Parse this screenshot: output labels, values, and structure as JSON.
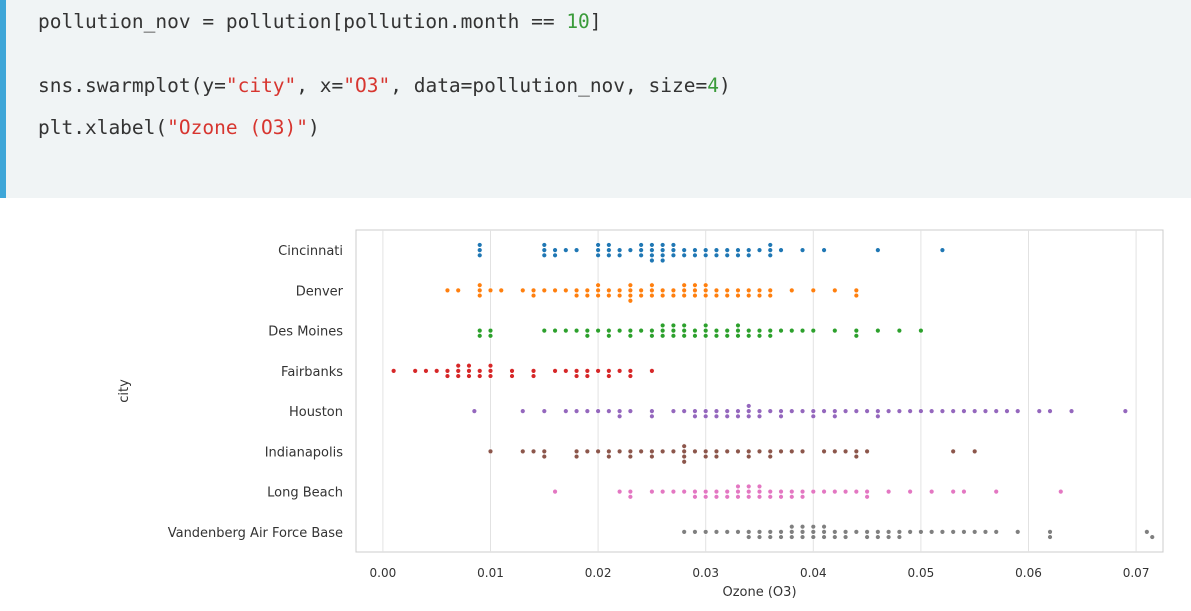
{
  "code": {
    "line1": {
      "pre": "pollution_nov = pollution[pollution.month == ",
      "n": "10",
      "post": "]"
    },
    "line2": {
      "a": "sns.swarmplot(y=",
      "s1": "\"city\"",
      "b": ", x=",
      "s2": "\"O3\"",
      "c": ", data=pollution_nov, size=",
      "n": "4",
      "d": ")"
    },
    "line3": {
      "a": "plt.xlabel(",
      "s": "\"Ozone (O3)\"",
      "b": ")"
    }
  },
  "chart_data": {
    "type": "scatter",
    "subtype": "swarm",
    "xlabel": "Ozone (O3)",
    "ylabel": "city",
    "xlim": [
      -0.0025,
      0.0725
    ],
    "xticks": [
      "0.00",
      "0.01",
      "0.02",
      "0.03",
      "0.04",
      "0.05",
      "0.06",
      "0.07"
    ],
    "grid": "vertical",
    "categories": [
      "Cincinnati",
      "Denver",
      "Des Moines",
      "Fairbanks",
      "Houston",
      "Indianapolis",
      "Long Beach",
      "Vandenberg Air Force Base"
    ],
    "colors": [
      "#1f77b4",
      "#ff7f0e",
      "#2ca02c",
      "#d62728",
      "#9467bd",
      "#8c564b",
      "#e377c2",
      "#7f7f7f"
    ],
    "series": [
      {
        "values": [
          0.009,
          0.009,
          0.009,
          0.015,
          0.015,
          0.015,
          0.016,
          0.016,
          0.017,
          0.018,
          0.02,
          0.02,
          0.02,
          0.021,
          0.021,
          0.021,
          0.022,
          0.022,
          0.023,
          0.024,
          0.024,
          0.024,
          0.025,
          0.025,
          0.025,
          0.025,
          0.026,
          0.026,
          0.026,
          0.026,
          0.027,
          0.027,
          0.027,
          0.028,
          0.028,
          0.029,
          0.029,
          0.03,
          0.03,
          0.031,
          0.031,
          0.032,
          0.032,
          0.033,
          0.033,
          0.034,
          0.034,
          0.035,
          0.036,
          0.036,
          0.036,
          0.037,
          0.039,
          0.041,
          0.046,
          0.052
        ]
      },
      {
        "values": [
          0.006,
          0.007,
          0.009,
          0.009,
          0.009,
          0.01,
          0.011,
          0.013,
          0.014,
          0.014,
          0.015,
          0.016,
          0.017,
          0.018,
          0.018,
          0.019,
          0.019,
          0.02,
          0.02,
          0.02,
          0.021,
          0.021,
          0.022,
          0.022,
          0.023,
          0.023,
          0.023,
          0.023,
          0.024,
          0.024,
          0.025,
          0.025,
          0.025,
          0.026,
          0.026,
          0.027,
          0.027,
          0.028,
          0.028,
          0.028,
          0.029,
          0.029,
          0.029,
          0.03,
          0.03,
          0.03,
          0.031,
          0.031,
          0.032,
          0.032,
          0.033,
          0.033,
          0.034,
          0.034,
          0.035,
          0.035,
          0.036,
          0.036,
          0.038,
          0.04,
          0.042,
          0.044,
          0.044
        ]
      },
      {
        "values": [
          0.009,
          0.009,
          0.01,
          0.01,
          0.015,
          0.016,
          0.017,
          0.018,
          0.019,
          0.019,
          0.02,
          0.021,
          0.021,
          0.022,
          0.023,
          0.023,
          0.024,
          0.025,
          0.025,
          0.026,
          0.026,
          0.026,
          0.027,
          0.027,
          0.027,
          0.028,
          0.028,
          0.028,
          0.029,
          0.029,
          0.03,
          0.03,
          0.03,
          0.031,
          0.031,
          0.032,
          0.032,
          0.033,
          0.033,
          0.033,
          0.034,
          0.034,
          0.035,
          0.035,
          0.036,
          0.036,
          0.037,
          0.038,
          0.039,
          0.04,
          0.042,
          0.044,
          0.044,
          0.046,
          0.048,
          0.05
        ]
      },
      {
        "values": [
          0.001,
          0.003,
          0.004,
          0.005,
          0.006,
          0.006,
          0.007,
          0.007,
          0.007,
          0.008,
          0.008,
          0.008,
          0.009,
          0.009,
          0.01,
          0.01,
          0.01,
          0.012,
          0.012,
          0.014,
          0.014,
          0.016,
          0.017,
          0.018,
          0.018,
          0.019,
          0.019,
          0.02,
          0.021,
          0.021,
          0.022,
          0.023,
          0.023,
          0.025
        ]
      },
      {
        "values": [
          0.0085,
          0.013,
          0.015,
          0.017,
          0.018,
          0.019,
          0.02,
          0.021,
          0.022,
          0.022,
          0.023,
          0.025,
          0.025,
          0.027,
          0.028,
          0.029,
          0.029,
          0.03,
          0.03,
          0.031,
          0.031,
          0.032,
          0.032,
          0.033,
          0.033,
          0.034,
          0.034,
          0.034,
          0.035,
          0.035,
          0.036,
          0.037,
          0.037,
          0.038,
          0.039,
          0.04,
          0.04,
          0.041,
          0.042,
          0.042,
          0.043,
          0.044,
          0.045,
          0.046,
          0.046,
          0.047,
          0.048,
          0.049,
          0.05,
          0.051,
          0.052,
          0.053,
          0.054,
          0.055,
          0.056,
          0.057,
          0.058,
          0.059,
          0.061,
          0.062,
          0.064,
          0.069
        ]
      },
      {
        "values": [
          0.01,
          0.013,
          0.014,
          0.015,
          0.015,
          0.018,
          0.018,
          0.019,
          0.02,
          0.021,
          0.021,
          0.022,
          0.023,
          0.023,
          0.024,
          0.025,
          0.025,
          0.026,
          0.027,
          0.028,
          0.028,
          0.028,
          0.028,
          0.029,
          0.03,
          0.03,
          0.031,
          0.031,
          0.032,
          0.033,
          0.034,
          0.034,
          0.035,
          0.036,
          0.036,
          0.037,
          0.038,
          0.039,
          0.041,
          0.042,
          0.043,
          0.044,
          0.044,
          0.045,
          0.053,
          0.055
        ]
      },
      {
        "values": [
          0.016,
          0.022,
          0.023,
          0.023,
          0.025,
          0.026,
          0.027,
          0.028,
          0.029,
          0.029,
          0.03,
          0.03,
          0.031,
          0.031,
          0.032,
          0.032,
          0.033,
          0.033,
          0.033,
          0.034,
          0.034,
          0.034,
          0.035,
          0.035,
          0.035,
          0.036,
          0.036,
          0.037,
          0.037,
          0.038,
          0.038,
          0.039,
          0.039,
          0.04,
          0.041,
          0.042,
          0.043,
          0.044,
          0.045,
          0.045,
          0.047,
          0.049,
          0.051,
          0.053,
          0.054,
          0.057,
          0.063
        ]
      },
      {
        "values": [
          0.028,
          0.029,
          0.03,
          0.031,
          0.032,
          0.033,
          0.034,
          0.034,
          0.035,
          0.035,
          0.036,
          0.036,
          0.037,
          0.037,
          0.038,
          0.038,
          0.038,
          0.039,
          0.039,
          0.039,
          0.04,
          0.04,
          0.04,
          0.041,
          0.041,
          0.041,
          0.042,
          0.042,
          0.043,
          0.043,
          0.044,
          0.045,
          0.045,
          0.046,
          0.046,
          0.047,
          0.047,
          0.048,
          0.048,
          0.049,
          0.05,
          0.051,
          0.052,
          0.053,
          0.054,
          0.055,
          0.056,
          0.057,
          0.059,
          0.062,
          0.062,
          0.071,
          0.0715
        ]
      }
    ]
  }
}
